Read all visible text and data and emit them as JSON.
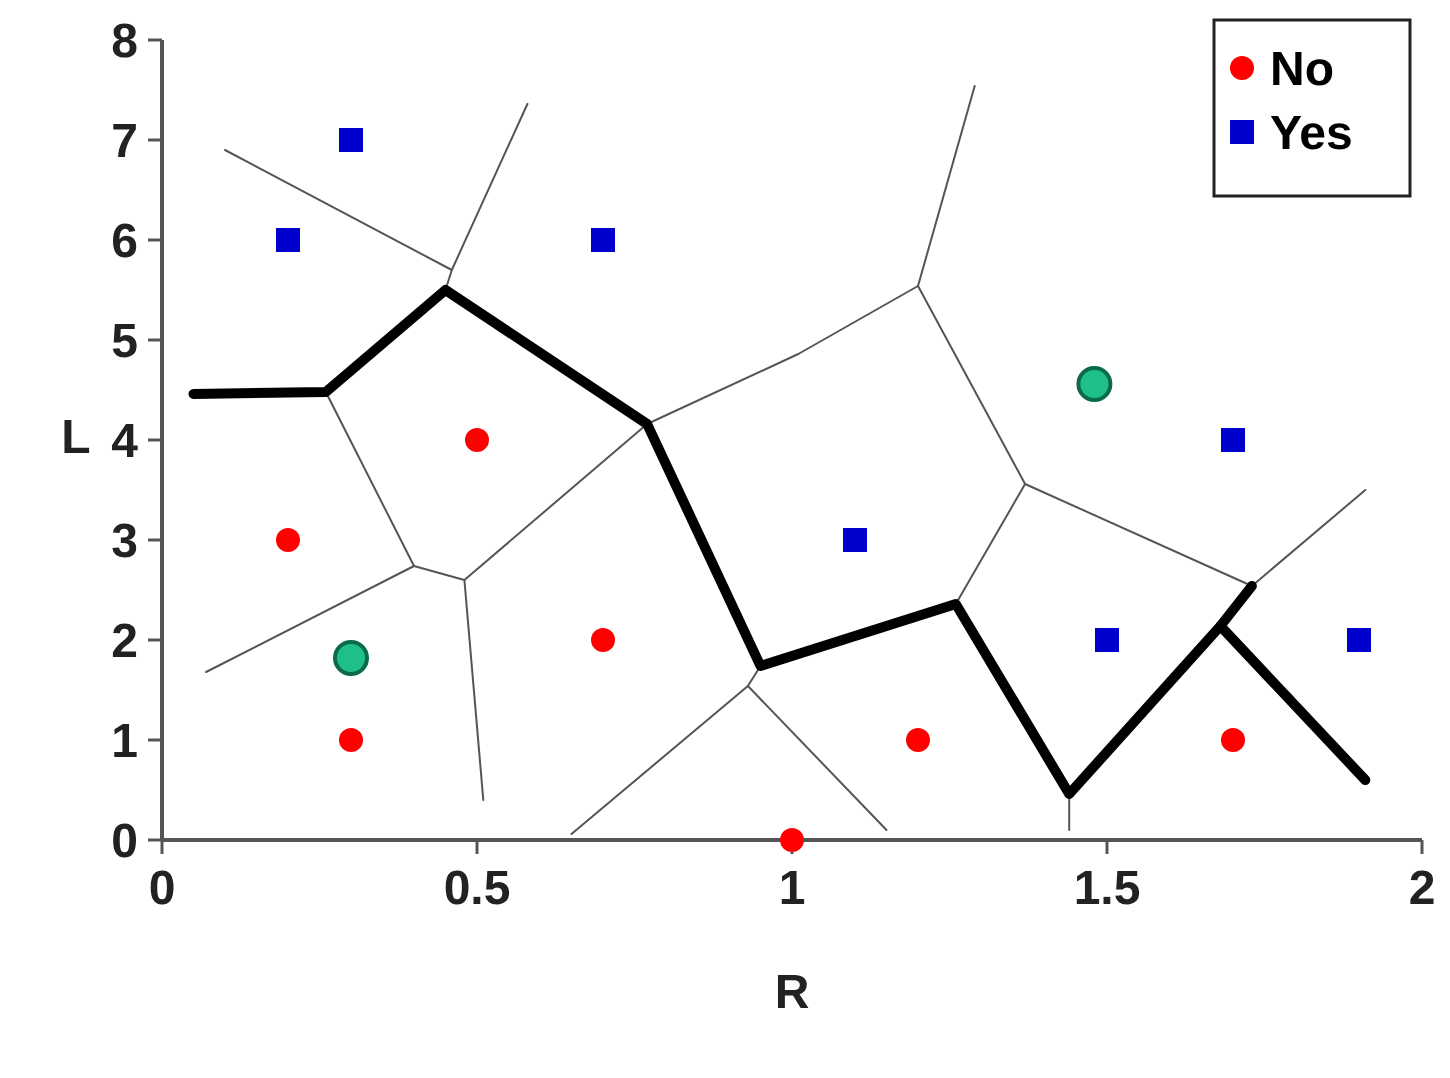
{
  "chart_data": {
    "type": "scatter",
    "xlabel": "R",
    "ylabel": "L",
    "xlim": [
      0,
      2
    ],
    "ylim": [
      0,
      8
    ],
    "xticks": [
      0,
      0.5,
      1,
      1.5,
      2
    ],
    "yticks": [
      0,
      1,
      2,
      3,
      4,
      5,
      6,
      7,
      8
    ],
    "legend": "top right",
    "grid": false,
    "series": [
      {
        "type": "line",
        "color": "#000000",
        "marker": "none",
        "x": [
          0.05,
          0.26,
          0.45,
          0.77,
          0.95,
          1.26,
          1.44,
          1.68,
          1.91
        ],
        "values": [
          4.46,
          4.48,
          5.5,
          4.16,
          1.74,
          2.36,
          0.46,
          2.14,
          0.6
        ]
      },
      {
        "type": "line",
        "color": "#000000",
        "marker": "none",
        "x": [
          1.68,
          1.73
        ],
        "values": [
          2.14,
          2.54
        ]
      },
      {
        "type": "line",
        "color": "#555555",
        "marker": "none",
        "x": [
          0.1,
          0.46,
          0.58
        ],
        "values": [
          6.9,
          5.7,
          7.36
        ]
      },
      {
        "type": "line",
        "color": "#555555",
        "marker": "none",
        "x": [
          0.46,
          0.45
        ],
        "values": [
          5.7,
          5.5
        ]
      },
      {
        "type": "line",
        "color": "#555555",
        "marker": "none",
        "x": [
          0.26,
          0.4,
          0.07
        ],
        "values": [
          4.48,
          2.74,
          1.68
        ]
      },
      {
        "type": "line",
        "color": "#555555",
        "marker": "none",
        "x": [
          0.4,
          0.48,
          0.51
        ],
        "values": [
          2.74,
          2.6,
          0.4
        ]
      },
      {
        "type": "line",
        "color": "#555555",
        "marker": "none",
        "x": [
          0.48,
          0.77,
          1.01,
          1.2,
          1.29
        ],
        "values": [
          2.6,
          4.16,
          4.86,
          5.54,
          7.54
        ]
      },
      {
        "type": "line",
        "color": "#555555",
        "marker": "none",
        "x": [
          1.2,
          1.37,
          1.26
        ],
        "values": [
          5.54,
          3.56,
          2.36
        ]
      },
      {
        "type": "line",
        "color": "#555555",
        "marker": "none",
        "x": [
          1.37,
          1.73,
          1.91
        ],
        "values": [
          3.56,
          2.54,
          3.5
        ]
      },
      {
        "type": "line",
        "color": "#555555",
        "marker": "none",
        "x": [
          0.95,
          0.93,
          0.65
        ],
        "values": [
          1.74,
          1.54,
          0.06
        ]
      },
      {
        "type": "line",
        "color": "#555555",
        "marker": "none",
        "x": [
          0.93,
          1.15
        ],
        "values": [
          1.54,
          0.1
        ]
      },
      {
        "type": "line",
        "color": "#555555",
        "marker": "none",
        "x": [
          1.44,
          1.44
        ],
        "values": [
          0.46,
          0.1
        ]
      },
      {
        "name": "No",
        "color": "#ff0000",
        "marker": "circle",
        "x": [
          0.5,
          0.2,
          0.7,
          0.3,
          1,
          1.2,
          1.7
        ],
        "values": [
          4,
          3,
          2,
          1,
          0,
          1,
          1
        ]
      },
      {
        "name": "Yes",
        "color": "#0000cc",
        "marker": "square",
        "x": [
          0.3,
          0.2,
          0.7,
          1.1,
          1.5,
          1.7,
          1.9
        ],
        "values": [
          7,
          6,
          6,
          3,
          2,
          4,
          2
        ]
      },
      {
        "color": "#1fbf8a",
        "marker": "circle",
        "x": [
          0.3,
          1.48
        ],
        "values": [
          1.82,
          4.56
        ]
      }
    ]
  }
}
